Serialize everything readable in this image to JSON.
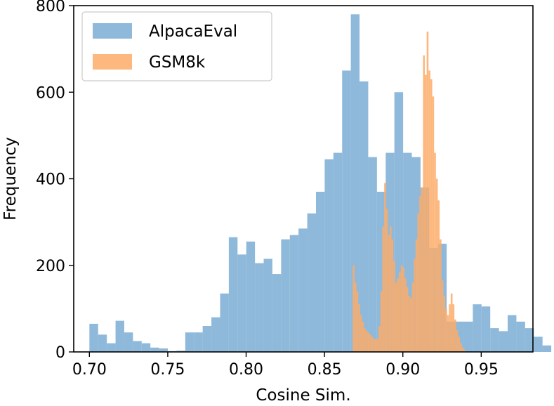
{
  "chart_data": {
    "type": "bar",
    "title": "",
    "xlabel": "Cosine Sim.",
    "ylabel": "Frequency",
    "xlim": [
      0.69,
      0.983
    ],
    "ylim": [
      0,
      800
    ],
    "xticks": [
      "0.70",
      "0.75",
      "0.80",
      "0.85",
      "0.90",
      "0.95"
    ],
    "xtick_values": [
      0.7,
      0.75,
      0.8,
      0.85,
      0.9,
      0.95
    ],
    "yticks": [
      "0",
      "200",
      "400",
      "600",
      "800"
    ],
    "ytick_values": [
      0,
      200,
      400,
      600,
      800
    ],
    "grid": false,
    "legend_position": "top-left",
    "series": [
      {
        "name": "AlpacaEval",
        "color": "#6fa5cf",
        "alpha": 0.78,
        "bin_start": 0.7,
        "bin_width": 0.00556,
        "values": [
          65,
          40,
          20,
          72,
          45,
          25,
          20,
          10,
          8,
          2,
          3,
          45,
          45,
          60,
          80,
          135,
          265,
          225,
          255,
          205,
          215,
          180,
          260,
          270,
          285,
          320,
          370,
          445,
          460,
          650,
          780,
          625,
          450,
          370,
          460,
          600,
          460,
          450,
          380,
          240,
          250,
          70,
          70,
          70,
          110,
          105,
          55,
          48,
          85,
          70,
          55,
          35,
          15
        ]
      },
      {
        "name": "GSM8k",
        "color": "#fdac68",
        "alpha": 0.85,
        "bin_start": 0.868,
        "bin_width": 0.00118,
        "values": [
          200,
          160,
          140,
          110,
          85,
          70,
          55,
          50,
          45,
          40,
          35,
          30,
          30,
          30,
          60,
          140,
          290,
          390,
          330,
          270,
          290,
          260,
          210,
          160,
          170,
          185,
          200,
          195,
          170,
          150,
          130,
          125,
          160,
          215,
          260,
          320,
          360,
          380,
          685,
          640,
          740,
          650,
          630,
          590,
          460,
          400,
          350,
          260,
          165,
          130,
          100,
          85,
          110,
          135,
          110,
          75,
          50,
          35,
          20,
          10,
          5
        ]
      }
    ]
  }
}
